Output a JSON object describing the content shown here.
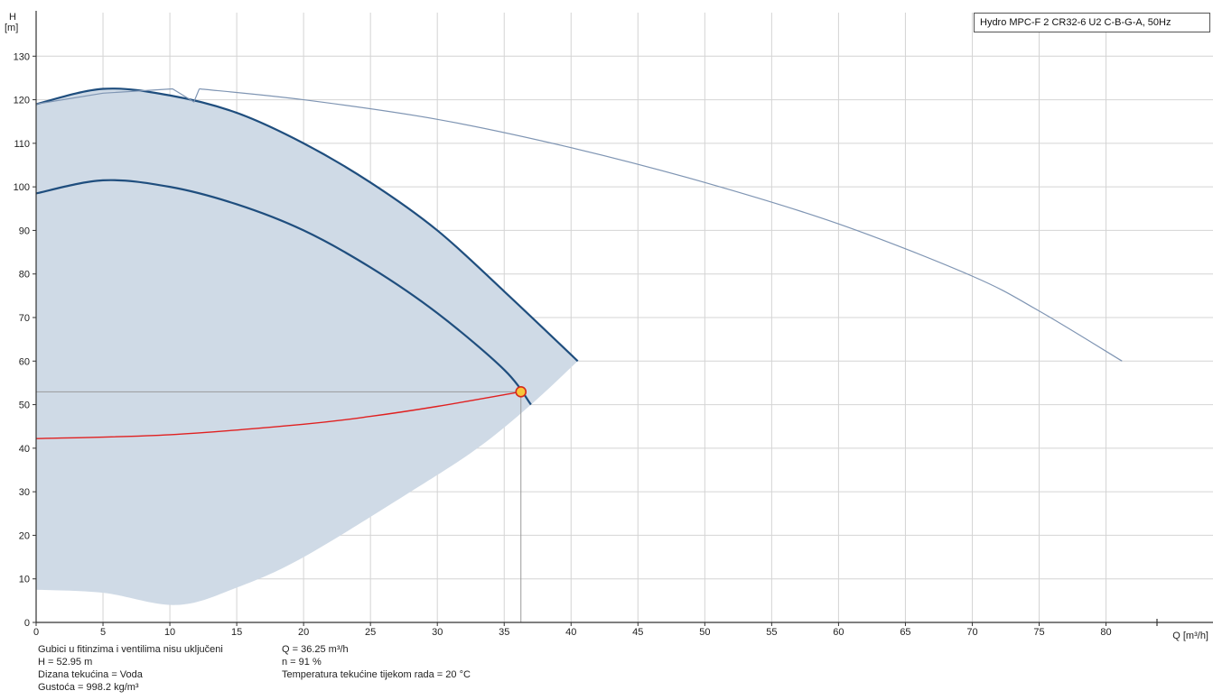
{
  "legend": {
    "label": "Hydro MPC-F 2 CR32-6 U2 C-B-G-A, 50Hz"
  },
  "info_left": [
    "Gubici u fitinzima i ventilima nisu uključeni",
    "H = 52.95 m",
    "Dizana tekućina = Voda",
    "Gustoća = 998.2 kg/m³"
  ],
  "info_right": [
    "Q = 36.25 m³/h",
    "n = 91 %",
    "Temperatura tekućine tijekom rada = 20 °C"
  ],
  "colors": {
    "grid": "#d4d4d4",
    "axis": "#333333",
    "fill_region": "#cfdae6",
    "curve_bold": "#1f4e7e",
    "curve_thin": "#7f95b3",
    "system_curve": "#e02020",
    "duty_point_fill": "#f7c63a",
    "duty_point_stroke": "#d62a1a",
    "duty_lines": "#9a9a9a"
  },
  "chart_data": {
    "type": "line",
    "title": "",
    "xlabel": "Q [m³/h]",
    "ylabel": "H\n[m]",
    "xlim": [
      0,
      88
    ],
    "ylim": [
      0,
      140
    ],
    "xticks": [
      0,
      5,
      10,
      15,
      20,
      25,
      30,
      35,
      40,
      45,
      50,
      55,
      60,
      65,
      70,
      75,
      80
    ],
    "yticks": [
      0,
      10,
      20,
      30,
      40,
      50,
      60,
      70,
      80,
      90,
      100,
      110,
      120,
      130
    ],
    "grid": true,
    "legend_position": "top-right",
    "operating_region": {
      "upper": [
        [
          0,
          119
        ],
        [
          5,
          122.5
        ],
        [
          10,
          121
        ],
        [
          15,
          117
        ],
        [
          20,
          110
        ],
        [
          25,
          101
        ],
        [
          30,
          90
        ],
        [
          35,
          76
        ],
        [
          40.5,
          60
        ]
      ],
      "lower": [
        [
          40.5,
          60
        ],
        [
          37,
          50
        ],
        [
          33,
          40
        ],
        [
          28,
          30
        ],
        [
          20,
          15
        ],
        [
          15,
          8
        ],
        [
          10.5,
          4
        ],
        [
          5,
          6.8
        ],
        [
          0,
          7.5
        ]
      ]
    },
    "series": [
      {
        "name": "",
        "style": "bold",
        "x": [
          0,
          5,
          10,
          15,
          20,
          25,
          30,
          35,
          40.5
        ],
        "y": [
          119,
          122.5,
          121,
          117,
          110,
          101,
          90,
          76,
          60
        ]
      },
      {
        "name": "",
        "style": "bold",
        "x": [
          0,
          5,
          10,
          15,
          20,
          25,
          30,
          35,
          37
        ],
        "y": [
          98.5,
          101.5,
          100,
          96,
          90,
          81.5,
          71,
          58,
          50
        ]
      },
      {
        "name": "",
        "style": "thin",
        "x": [
          0,
          5,
          10.2,
          11.8,
          12.2
        ],
        "y": [
          119,
          121.5,
          122.5,
          119.5,
          122.5
        ]
      },
      {
        "name": "",
        "style": "thin",
        "x": [
          12.2,
          20,
          30,
          40,
          50,
          60,
          70,
          75,
          81.2
        ],
        "y": [
          122.5,
          120,
          115.5,
          109,
          101,
          91.5,
          79.5,
          71.5,
          60
        ]
      },
      {
        "name": "",
        "style": "system",
        "x": [
          0,
          10,
          20,
          25,
          30,
          36.25
        ],
        "y": [
          42.2,
          43.1,
          45.5,
          47.3,
          49.6,
          52.95
        ]
      }
    ],
    "duty_point": {
      "x": 36.25,
      "y": 52.95
    }
  }
}
